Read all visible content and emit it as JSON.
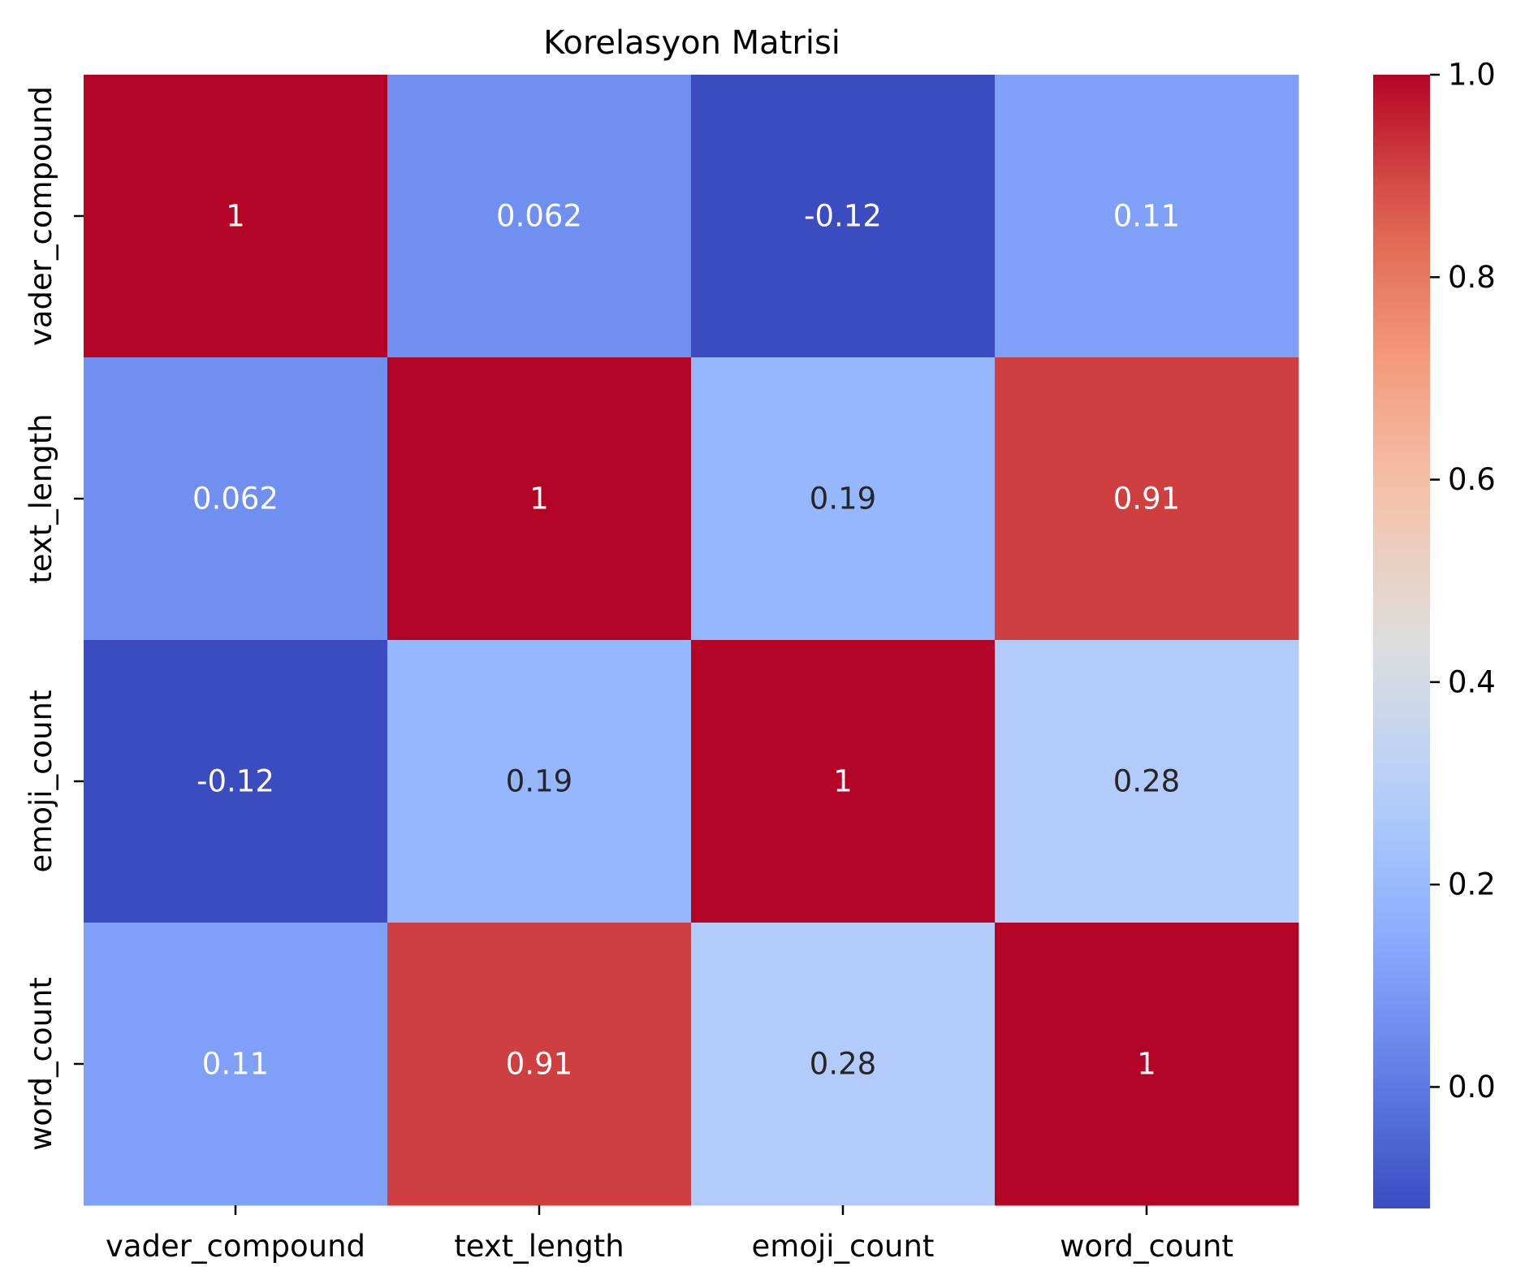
{
  "chart_data": {
    "type": "heatmap",
    "title": "Korelasyon Matrisi",
    "xlabel": "",
    "ylabel": "",
    "x_categories": [
      "vader_compound",
      "text_length",
      "emoji_count",
      "word_count"
    ],
    "y_categories": [
      "vader_compound",
      "text_length",
      "emoji_count",
      "word_count"
    ],
    "values": [
      [
        1.0,
        0.062,
        -0.12,
        0.11
      ],
      [
        0.062,
        1.0,
        0.19,
        0.91
      ],
      [
        -0.12,
        0.19,
        1.0,
        0.28
      ],
      [
        0.11,
        0.91,
        0.28,
        1.0
      ]
    ],
    "annotations": [
      [
        "1",
        "0.062",
        "-0.12",
        "0.11"
      ],
      [
        "0.062",
        "1",
        "0.19",
        "0.91"
      ],
      [
        "-0.12",
        "0.19",
        "1",
        "0.28"
      ],
      [
        "0.11",
        "0.91",
        "0.28",
        "1"
      ]
    ],
    "colormap": "coolwarm",
    "colorbar": {
      "vmin": -0.12,
      "vmax": 1.0,
      "ticks": [
        0.0,
        0.2,
        0.4,
        0.6,
        0.8,
        1.0
      ],
      "tick_labels": [
        "0.0",
        "0.2",
        "0.4",
        "0.6",
        "0.8",
        "1.0"
      ],
      "placement": "right"
    },
    "colors": {
      "low": "#3b4cc0",
      "mid": "#dddddd",
      "high": "#b40426",
      "annotation_light": "#ffffff",
      "annotation_dark": "#262626"
    }
  }
}
